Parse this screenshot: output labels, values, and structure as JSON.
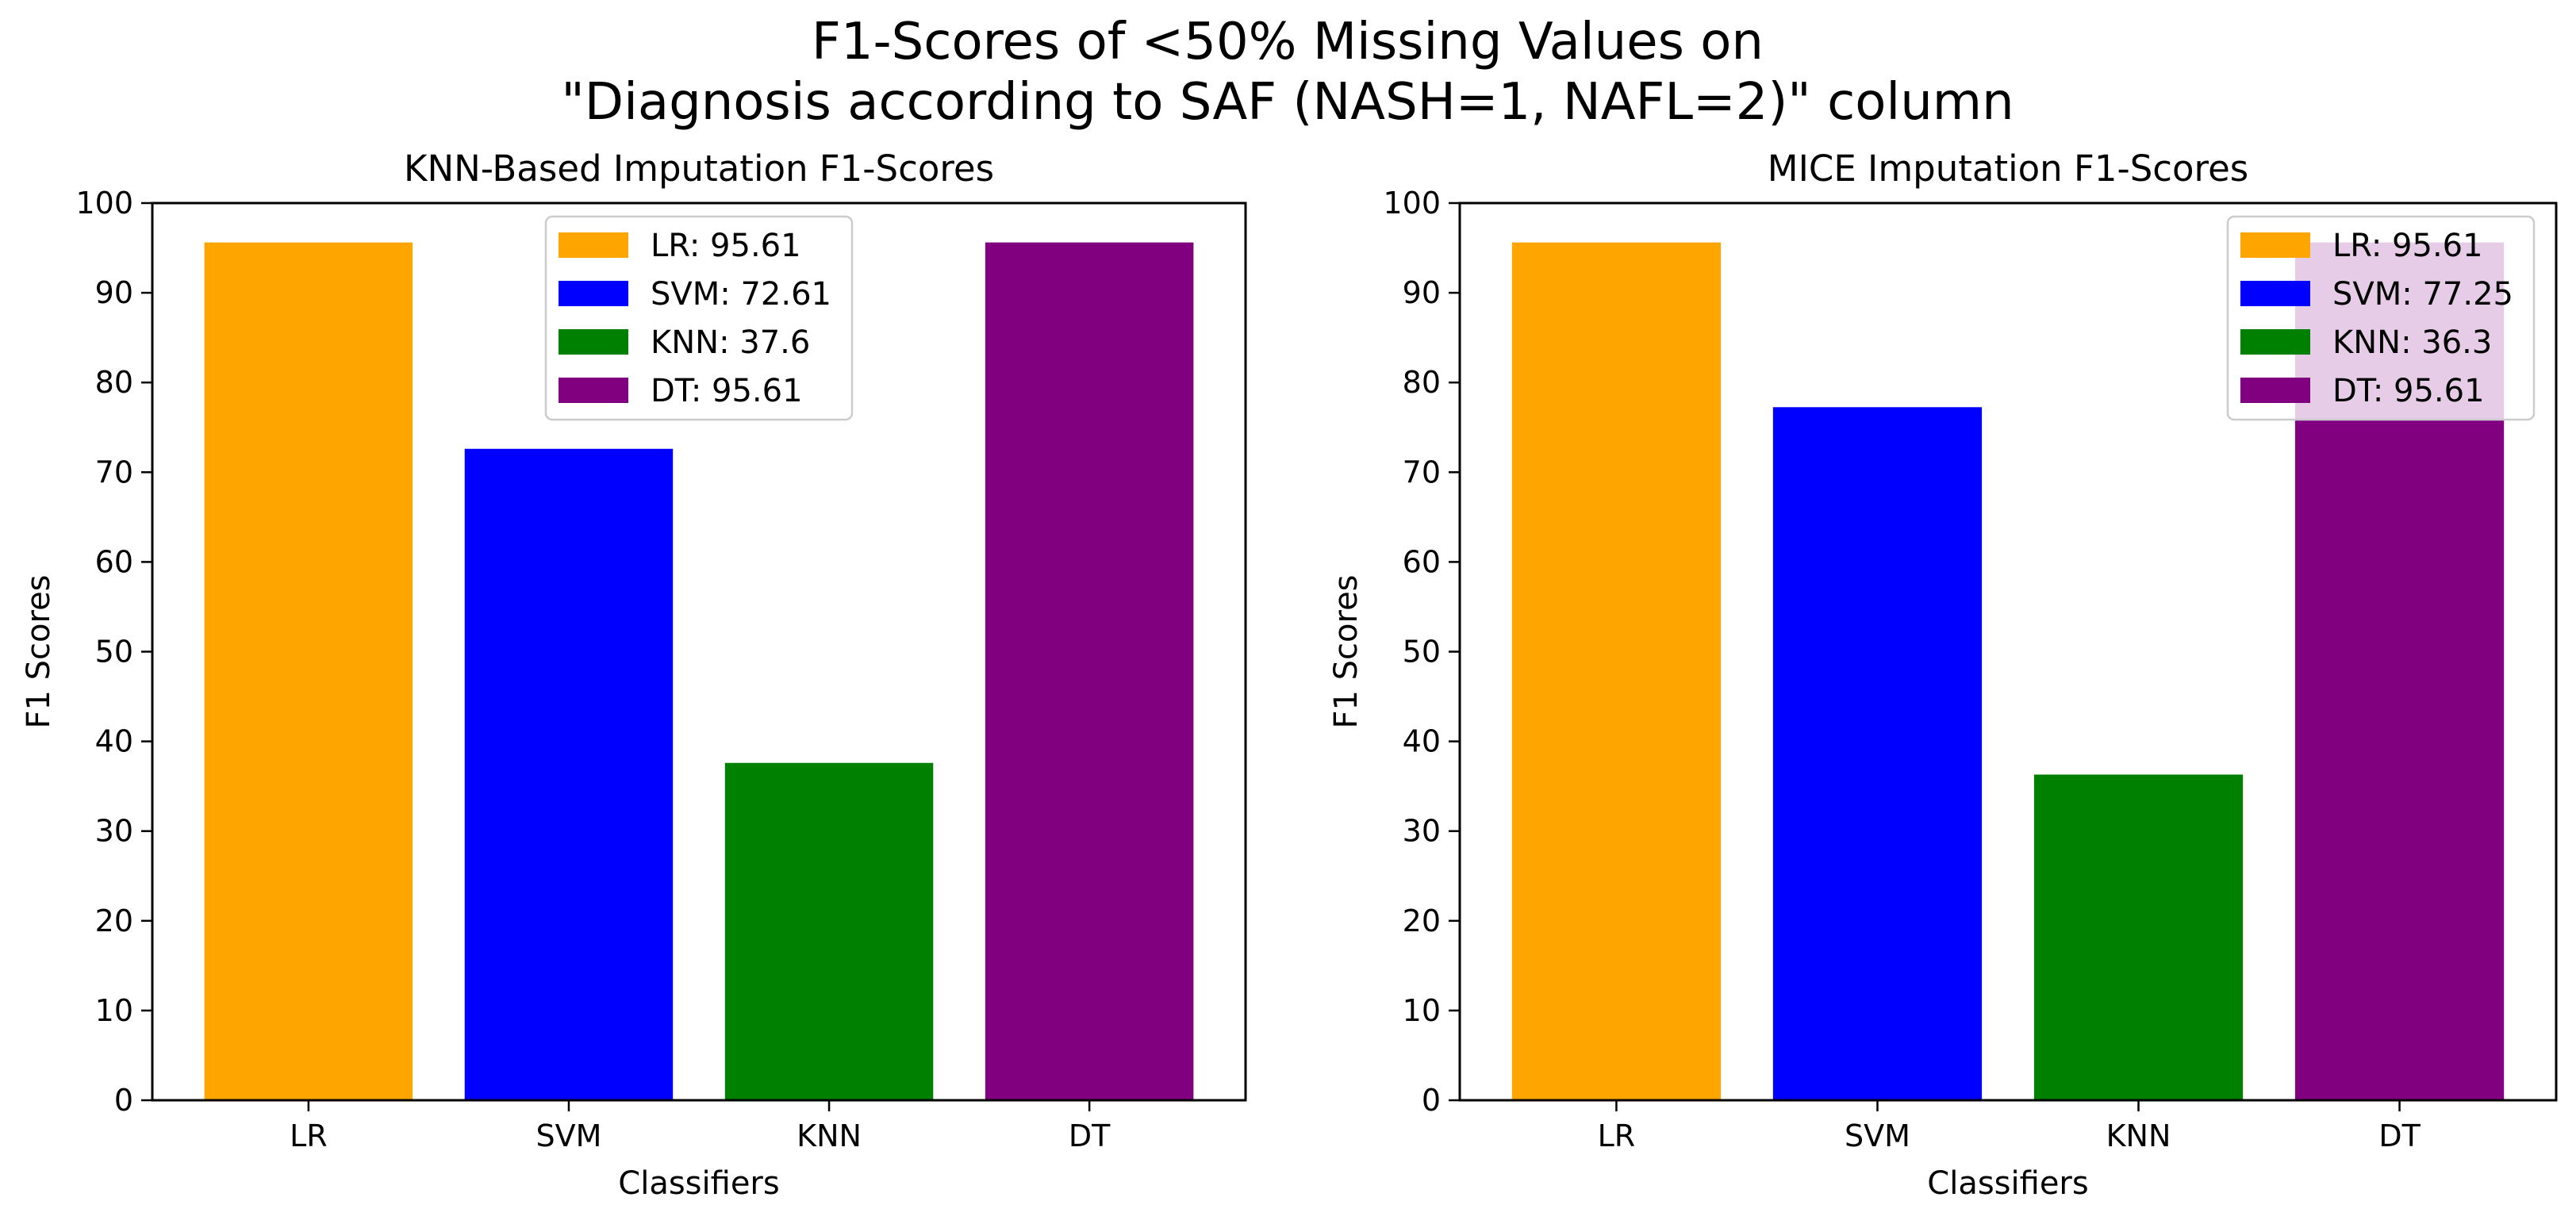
{
  "figure": {
    "title_line1": "F1-Scores of <50% Missing Values on",
    "title_line2": "\"Diagnosis according to SAF (NASH=1, NAFL=2)\" column"
  },
  "chart_data": [
    {
      "type": "bar",
      "title": "KNN-Based Imputation F1-Scores",
      "xlabel": "Classifiers",
      "ylabel": "F1 Scores",
      "categories": [
        "LR",
        "SVM",
        "KNN",
        "DT"
      ],
      "values": [
        95.61,
        72.61,
        37.6,
        95.61
      ],
      "colors": [
        "#FFA500",
        "#0000FF",
        "#008000",
        "#800080"
      ],
      "ylim": [
        0,
        100
      ],
      "yticks": [
        0,
        10,
        20,
        30,
        40,
        50,
        60,
        70,
        80,
        90,
        100
      ],
      "legend": [
        "LR: 95.61",
        "SVM: 72.61",
        "KNN: 37.6",
        "DT: 95.61"
      ],
      "legend_position": "upper center",
      "grid": false
    },
    {
      "type": "bar",
      "title": "MICE Imputation F1-Scores",
      "xlabel": "Classifiers",
      "ylabel": "F1 Scores",
      "categories": [
        "LR",
        "SVM",
        "KNN",
        "DT"
      ],
      "values": [
        95.61,
        77.25,
        36.3,
        95.61
      ],
      "colors": [
        "#FFA500",
        "#0000FF",
        "#008000",
        "#800080"
      ],
      "ylim": [
        0,
        100
      ],
      "yticks": [
        0,
        10,
        20,
        30,
        40,
        50,
        60,
        70,
        80,
        90,
        100
      ],
      "legend": [
        "LR: 95.61",
        "SVM: 77.25",
        "KNN: 36.3",
        "DT: 95.61"
      ],
      "legend_position": "upper right",
      "grid": false
    }
  ]
}
